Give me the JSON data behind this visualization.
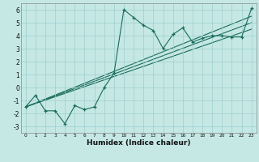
{
  "xlabel": "Humidex (Indice chaleur)",
  "xlim": [
    -0.5,
    23.5
  ],
  "ylim": [
    -3.5,
    6.5
  ],
  "yticks": [
    -3,
    -2,
    -1,
    0,
    1,
    2,
    3,
    4,
    5,
    6
  ],
  "xticks": [
    0,
    1,
    2,
    3,
    4,
    5,
    6,
    7,
    8,
    9,
    10,
    11,
    12,
    13,
    14,
    15,
    16,
    17,
    18,
    19,
    20,
    21,
    22,
    23
  ],
  "background_color": "#c5e8e5",
  "grid_color": "#9ecece",
  "line_color": "#1a6b5a",
  "series1_x": [
    0,
    1,
    2,
    3,
    4,
    5,
    6,
    7,
    8,
    9,
    10,
    11,
    12,
    13,
    14,
    15,
    16,
    17,
    18,
    19,
    20,
    21,
    22,
    23
  ],
  "series1_y": [
    -1.5,
    -0.6,
    -1.8,
    -1.8,
    -2.8,
    -1.4,
    -1.7,
    -1.5,
    0.0,
    1.1,
    6.0,
    5.4,
    4.8,
    4.4,
    3.0,
    4.1,
    4.6,
    3.5,
    3.8,
    4.0,
    4.0,
    3.9,
    3.9,
    6.1
  ],
  "trend1_x": [
    0,
    23
  ],
  "trend1_y": [
    -1.5,
    4.5
  ],
  "trend2_x": [
    0,
    23
  ],
  "trend2_y": [
    -1.5,
    5.0
  ],
  "trend3_x": [
    0,
    23
  ],
  "trend3_y": [
    -1.5,
    5.5
  ]
}
